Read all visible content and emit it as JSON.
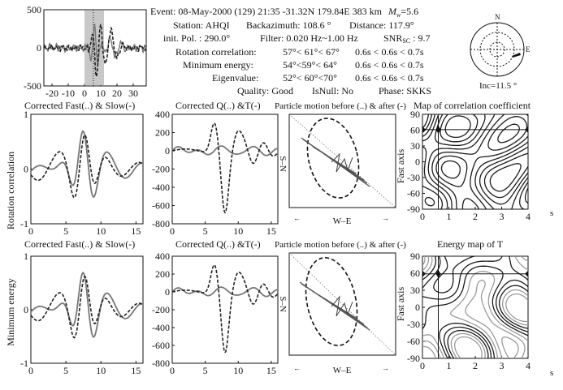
{
  "header": {
    "line1_prefix": "Event: 08-May-2000 (129)  21:35  -31.32N  179.84E  383  km",
    "mw_symbol": "M",
    "mw_sub": "w",
    "mw_value": "=5.6",
    "station": "Station:   AHQI",
    "backazimuth": "Backazimuth:   108.6 °",
    "distance": "Distance:   117.9°",
    "init_pol": "init. Pol. :   290.0°",
    "filter": "Filter: 0.020 Hz~1.00 Hz",
    "snr_label": "SNR",
    "snr_sub": "SC",
    "snr_value": " :  9.7",
    "rows": [
      {
        "label": "Rotation correlation:",
        "value": "57°< 61°< 67°",
        "time": "0.6s <  0.6s < 0.7s"
      },
      {
        "label": "Minimum energy:",
        "value": "54°<59°< 64°",
        "time": "0.6s <  0.6s < 0.7s"
      },
      {
        "label": "Eigenvalue:",
        "value": "52°< 60°<70°",
        "time": "0.6s <  0.6s < 0.7s"
      }
    ],
    "quality": "Quality: Good",
    "isnull": "IsNull: No",
    "phase": "Phase: SKKS"
  },
  "stereonet": {
    "north": "N",
    "east": "E",
    "inc_label": "Inc=11.5 °"
  },
  "titles": {
    "row1_fs": "Corrected Fast(..) & Slow(-)",
    "row1_qt": "Corrected Q(..) &T(-)",
    "row1_pm": "Particle motion before (..) & after (-)",
    "row1_map": "Map of correlation coefficient",
    "row2_fs": "Corrected Fast(..) & Slow(-)",
    "row2_qt": "Corrected Q(..) &T(-)",
    "row2_pm": "Particle motion before (..) & after (-)",
    "row2_map": "Energy map of  T"
  },
  "labels": {
    "rot_corr_ylabel": "Rotation correlation",
    "min_energy_ylabel": "Minimum energy",
    "fast_axis": "Fast axis",
    "s_n": "S–N",
    "w_e": "W–E",
    "seconds": "s"
  },
  "colors": {
    "ink": "#111111",
    "gray_trace": "#777777",
    "window_shade": "#c8c8c8",
    "contour_dark": "#1a1a1a",
    "contour_light": "#9a9a9a"
  },
  "chart_data": [
    {
      "id": "waveform",
      "type": "line",
      "xlim": [
        -25,
        38
      ],
      "ylim": [
        -500,
        500
      ],
      "xticks": [
        -20,
        -10,
        0,
        10,
        20,
        30
      ],
      "yticks": [
        -500,
        0,
        500
      ],
      "shaded_window": [
        0,
        12
      ]
    },
    {
      "id": "fs1",
      "type": "line",
      "xlim": [
        0,
        16
      ],
      "ylim": [
        -1,
        1
      ],
      "xticks": [
        0,
        5,
        10,
        15
      ],
      "yticks": [
        -1,
        0,
        1
      ],
      "ylabel": "Rotation correlation"
    },
    {
      "id": "qt1",
      "type": "line",
      "xlim": [
        0,
        16
      ],
      "ylim": [
        -800,
        400
      ],
      "xticks": [
        0,
        5,
        10,
        15
      ],
      "yticks": [
        -800,
        -600,
        -400,
        -200,
        0,
        200,
        400
      ]
    },
    {
      "id": "map1",
      "type": "heatmap",
      "xlim": [
        0,
        4
      ],
      "ylim": [
        -90,
        90
      ],
      "xticks": [
        0,
        1,
        2,
        3,
        4
      ],
      "yticks": [
        -90,
        -60,
        -30,
        0,
        30,
        60,
        90
      ],
      "best": {
        "dt": 0.6,
        "phi": 61
      }
    },
    {
      "id": "fs2",
      "type": "line",
      "xlim": [
        0,
        16
      ],
      "ylim": [
        -1,
        1
      ],
      "xticks": [
        0,
        5,
        10,
        15
      ],
      "yticks": [
        -1,
        0,
        1
      ],
      "ylabel": "Minimum energy"
    },
    {
      "id": "qt2",
      "type": "line",
      "xlim": [
        0,
        16
      ],
      "ylim": [
        -800,
        400
      ],
      "xticks": [
        0,
        5,
        10,
        15
      ],
      "yticks": [
        -800,
        -600,
        -400,
        -200,
        0,
        200,
        400
      ]
    },
    {
      "id": "map2",
      "type": "heatmap",
      "xlim": [
        0,
        4
      ],
      "ylim": [
        -90,
        90
      ],
      "xticks": [
        0,
        1,
        2,
        3,
        4
      ],
      "yticks": [
        -90,
        -60,
        -30,
        0,
        30,
        60,
        90
      ],
      "best": {
        "dt": 0.6,
        "phi": 59
      }
    }
  ]
}
